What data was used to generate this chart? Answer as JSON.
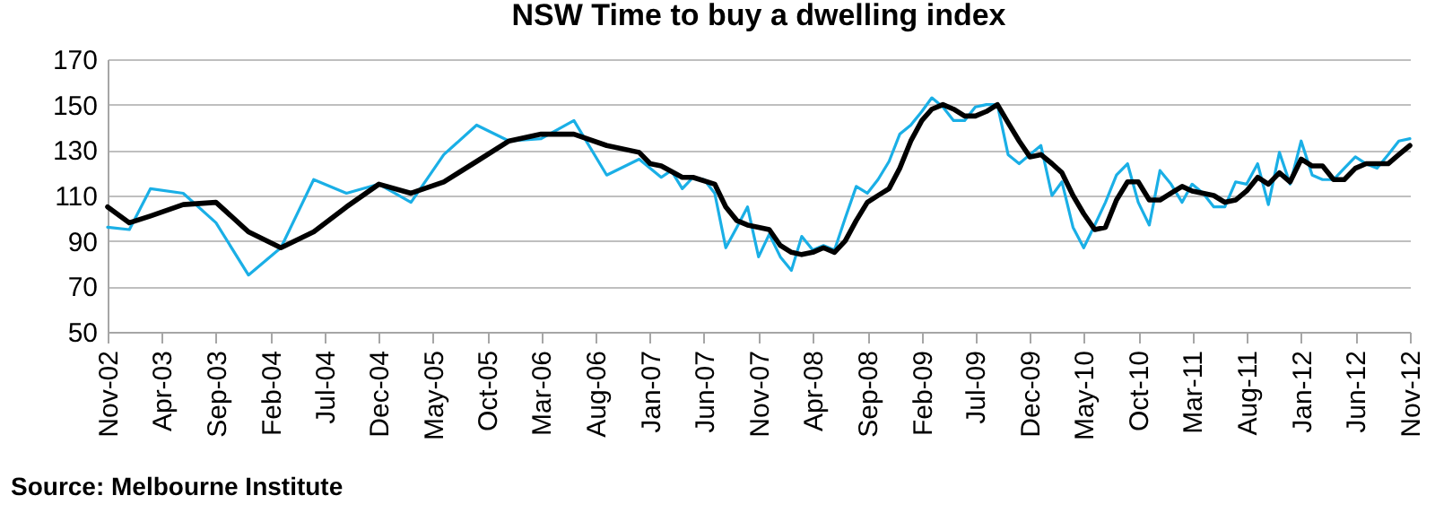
{
  "chart_data": {
    "type": "line",
    "title": "NSW Time to buy a dwelling index",
    "xlim": [
      "2002-11",
      "2012-11"
    ],
    "xticks": [
      {
        "value": "2002-11",
        "label": "Nov-02"
      },
      {
        "value": "2003-04",
        "label": "Apr-03"
      },
      {
        "value": "2003-09",
        "label": "Sep-03"
      },
      {
        "value": "2004-02",
        "label": "Feb-04"
      },
      {
        "value": "2004-07",
        "label": "Jul-04"
      },
      {
        "value": "2004-12",
        "label": "Dec-04"
      },
      {
        "value": "2005-05",
        "label": "May-05"
      },
      {
        "value": "2005-10",
        "label": "Oct-05"
      },
      {
        "value": "2006-03",
        "label": "Mar-06"
      },
      {
        "value": "2006-08",
        "label": "Aug-06"
      },
      {
        "value": "2007-01",
        "label": "Jan-07"
      },
      {
        "value": "2007-06",
        "label": "Jun-07"
      },
      {
        "value": "2007-11",
        "label": "Nov-07"
      },
      {
        "value": "2008-04",
        "label": "Apr-08"
      },
      {
        "value": "2008-09",
        "label": "Sep-08"
      },
      {
        "value": "2009-02",
        "label": "Feb-09"
      },
      {
        "value": "2009-07",
        "label": "Jul-09"
      },
      {
        "value": "2009-12",
        "label": "Dec-09"
      },
      {
        "value": "2010-05",
        "label": "May-10"
      },
      {
        "value": "2010-10",
        "label": "Oct-10"
      },
      {
        "value": "2011-03",
        "label": "Mar-11"
      },
      {
        "value": "2011-08",
        "label": "Aug-11"
      },
      {
        "value": "2012-01",
        "label": "Jan-12"
      },
      {
        "value": "2012-06",
        "label": "Jun-12"
      },
      {
        "value": "2012-11",
        "label": "Nov-12"
      }
    ],
    "ylim": [
      50,
      170
    ],
    "yticks": [
      50,
      70,
      90,
      110,
      130,
      150,
      170
    ],
    "grid": "y",
    "series": [
      {
        "color": "#1aafe6",
        "x": [
          "2002-11",
          "2003-01",
          "2003-03",
          "2003-06",
          "2003-09",
          "2003-12",
          "2004-03",
          "2004-06",
          "2004-09",
          "2004-12",
          "2005-03",
          "2005-06",
          "2005-09",
          "2005-12",
          "2006-03",
          "2006-06",
          "2006-09",
          "2006-12",
          "2007-02",
          "2007-03",
          "2007-04",
          "2007-05",
          "2007-06",
          "2007-07",
          "2007-08",
          "2007-09",
          "2007-10",
          "2007-11",
          "2007-12",
          "2008-01",
          "2008-02",
          "2008-03",
          "2008-04",
          "2008-05",
          "2008-06",
          "2008-07",
          "2008-08",
          "2008-09",
          "2008-10",
          "2008-11",
          "2008-12",
          "2009-01",
          "2009-02",
          "2009-03",
          "2009-04",
          "2009-05",
          "2009-06",
          "2009-07",
          "2009-08",
          "2009-09",
          "2009-10",
          "2009-11",
          "2009-12",
          "2010-01",
          "2010-02",
          "2010-03",
          "2010-04",
          "2010-05",
          "2010-06",
          "2010-07",
          "2010-08",
          "2010-09",
          "2010-10",
          "2010-11",
          "2010-12",
          "2011-01",
          "2011-02",
          "2011-03",
          "2011-04",
          "2011-05",
          "2011-06",
          "2011-07",
          "2011-08",
          "2011-09",
          "2011-10",
          "2011-11",
          "2011-12",
          "2012-01",
          "2012-02",
          "2012-03",
          "2012-04",
          "2012-05",
          "2012-06",
          "2012-07",
          "2012-08",
          "2012-09",
          "2012-10",
          "2012-11"
        ],
        "values": [
          96,
          95,
          113,
          111,
          98,
          75,
          87,
          117,
          111,
          115,
          107,
          128,
          141,
          134,
          135,
          143,
          119,
          126,
          118,
          121,
          113,
          118,
          117,
          111,
          87,
          96,
          105,
          83,
          93,
          83,
          77,
          92,
          86,
          88,
          86,
          100,
          114,
          111,
          117,
          125,
          137,
          141,
          147,
          153,
          149,
          143,
          143,
          149,
          150,
          150,
          128,
          124,
          128,
          132,
          110,
          116,
          96,
          87,
          97,
          107,
          119,
          124,
          107,
          97,
          121,
          115,
          107,
          115,
          111,
          105,
          105,
          116,
          115,
          124,
          106,
          129,
          115,
          134,
          119,
          117,
          117,
          122,
          127,
          124,
          122,
          128,
          134,
          135
        ]
      },
      {
        "color": "#000000",
        "x": [
          "2002-11",
          "2003-01",
          "2003-03",
          "2003-06",
          "2003-09",
          "2003-12",
          "2004-03",
          "2004-06",
          "2004-09",
          "2004-12",
          "2005-03",
          "2005-06",
          "2005-09",
          "2005-12",
          "2006-03",
          "2006-06",
          "2006-09",
          "2006-12",
          "2007-01",
          "2007-02",
          "2007-04",
          "2007-05",
          "2007-07",
          "2007-08",
          "2007-09",
          "2007-10",
          "2007-11",
          "2007-12",
          "2008-01",
          "2008-02",
          "2008-03",
          "2008-04",
          "2008-05",
          "2008-06",
          "2008-07",
          "2008-08",
          "2008-09",
          "2008-10",
          "2008-11",
          "2008-12",
          "2009-01",
          "2009-02",
          "2009-03",
          "2009-04",
          "2009-05",
          "2009-06",
          "2009-07",
          "2009-08",
          "2009-09",
          "2009-10",
          "2009-11",
          "2009-12",
          "2010-01",
          "2010-02",
          "2010-03",
          "2010-04",
          "2010-05",
          "2010-06",
          "2010-07",
          "2010-08",
          "2010-09",
          "2010-10",
          "2010-11",
          "2010-12",
          "2011-01",
          "2011-02",
          "2011-03",
          "2011-04",
          "2011-05",
          "2011-06",
          "2011-07",
          "2011-08",
          "2011-09",
          "2011-10",
          "2011-11",
          "2011-12",
          "2012-01",
          "2012-02",
          "2012-03",
          "2012-04",
          "2012-05",
          "2012-06",
          "2012-07",
          "2012-08",
          "2012-09",
          "2012-10",
          "2012-11"
        ],
        "values": [
          105,
          98,
          101,
          106,
          107,
          94,
          87,
          94,
          105,
          115,
          111,
          116,
          125,
          134,
          137,
          137,
          132,
          129,
          124,
          123,
          118,
          118,
          115,
          105,
          99,
          97,
          96,
          95,
          88,
          85,
          84,
          85,
          87,
          85,
          90,
          99,
          107,
          110,
          113,
          122,
          134,
          143,
          148,
          150,
          148,
          145,
          145,
          147,
          150,
          142,
          134,
          127,
          128,
          124,
          120,
          110,
          102,
          95,
          96,
          108,
          116,
          116,
          108,
          108,
          111,
          114,
          112,
          111,
          110,
          107,
          108,
          112,
          118,
          115,
          120,
          116,
          126,
          123,
          123,
          117,
          117,
          122,
          124,
          124,
          124,
          128,
          132
        ]
      }
    ],
    "annotations": [
      "Source: Melbourne Institute"
    ]
  }
}
